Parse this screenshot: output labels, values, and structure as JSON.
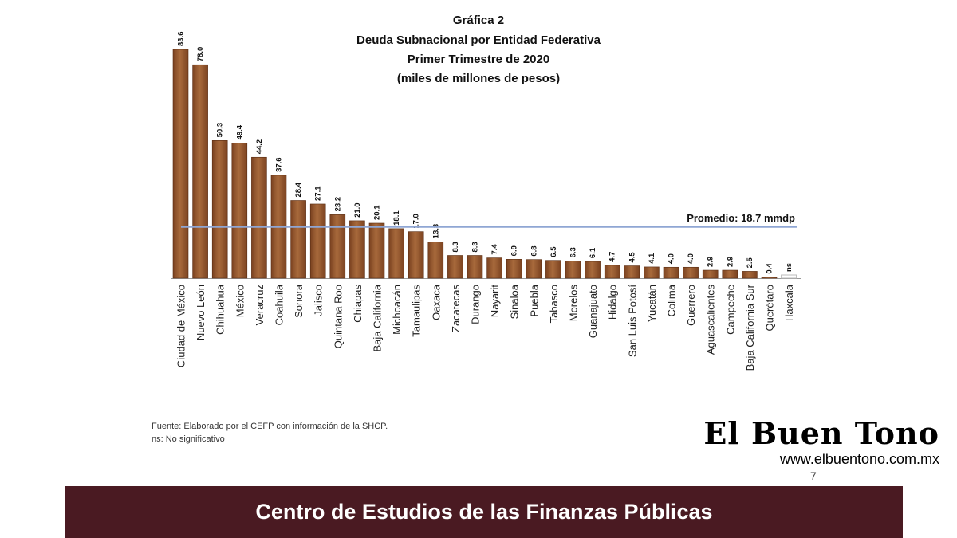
{
  "chart_data": {
    "type": "bar",
    "title_lines": [
      "Gráfica 2",
      "Deuda Subnacional por Entidad Federativa",
      "Primer Trimestre de 2020",
      "(miles de millones de pesos)"
    ],
    "categories": [
      "Ciudad de México",
      "Nuevo León",
      "Chihuahua",
      "México",
      "Veracruz",
      "Coahuila",
      "Sonora",
      "Jalisco",
      "Quintana Roo",
      "Chiapas",
      "Baja California",
      "Michoacán",
      "Tamaulipas",
      "Oaxaca",
      "Zacatecas",
      "Durango",
      "Nayarit",
      "Sinaloa",
      "Puebla",
      "Tabasco",
      "Morelos",
      "Guanajuato",
      "Hidalgo",
      "San Luis Potosí",
      "Yucatán",
      "Colima",
      "Guerrero",
      "Aguascalientes",
      "Campeche",
      "Baja California Sur",
      "Querétaro",
      "Tlaxcala"
    ],
    "values": [
      83.6,
      78.0,
      50.3,
      49.4,
      44.2,
      37.6,
      28.4,
      27.1,
      23.2,
      21.0,
      20.1,
      18.1,
      17.0,
      13.3,
      8.3,
      8.3,
      7.4,
      6.9,
      6.8,
      6.5,
      6.3,
      6.1,
      4.7,
      4.5,
      4.1,
      4.0,
      4.0,
      2.9,
      2.9,
      2.5,
      0.4,
      null
    ],
    "value_labels": [
      "83.6",
      "78.0",
      "50.3",
      "49.4",
      "44.2",
      "37.6",
      "28.4",
      "27.1",
      "23.2",
      "21.0",
      "20.1",
      "18.1",
      "17.0",
      "13.3",
      "8.3",
      "8.3",
      "7.4",
      "6.9",
      "6.8",
      "6.5",
      "6.3",
      "6.1",
      "4.7",
      "4.5",
      "4.1",
      "4.0",
      "4.0",
      "2.9",
      "2.9",
      "2.5",
      "0.4",
      "ns"
    ],
    "average_value": 18.7,
    "average_label": "Promedio: 18.7 mmdp",
    "ylim": [
      0,
      83.6
    ],
    "grid": false,
    "legend": "none",
    "colors": {
      "bar": "#7b4220",
      "bar_light": "#a86a3c",
      "average_line": "#8fa6d4",
      "empty_bar_outline": "#bbbbbb"
    }
  },
  "source_lines": [
    "Fuente: Elaborado por el CEFP con información de la SHCP.",
    "ns: No significativo"
  ],
  "page_number": "7",
  "footer": {
    "text": "Centro de Estudios de las Finanzas Públicas",
    "color": "#4a1a22"
  },
  "watermark": {
    "name": "El Buen Tono",
    "url": "www.elbuentono.com.mx"
  }
}
